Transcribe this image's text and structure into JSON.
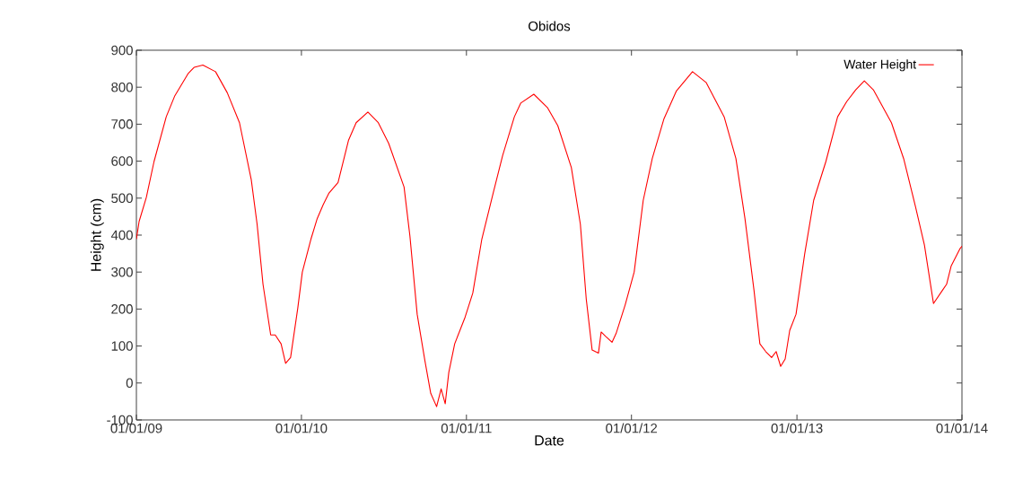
{
  "chart_data": {
    "type": "line",
    "title": "Obidos",
    "xlabel": "Date",
    "ylabel": "Height (cm)",
    "x": [
      "2009-01-01",
      "2009-01-07",
      "2009-01-23",
      "2009-02-09",
      "2009-03-08",
      "2009-03-27",
      "2009-04-26",
      "2009-05-09",
      "2009-05-28",
      "2009-06-25",
      "2009-07-21",
      "2009-08-17",
      "2009-09-12",
      "2009-09-25",
      "2009-10-08",
      "2009-10-25",
      "2009-11-04",
      "2009-11-17",
      "2009-11-27",
      "2009-12-08",
      "2009-12-24",
      "2010-01-03",
      "2010-01-22",
      "2010-02-05",
      "2010-02-18",
      "2010-03-03",
      "2010-03-23",
      "2010-04-15",
      "2010-05-02",
      "2010-05-28",
      "2010-06-20",
      "2010-07-13",
      "2010-08-16",
      "2010-08-29",
      "2010-09-14",
      "2010-10-01",
      "2010-10-14",
      "2010-10-27",
      "2010-11-06",
      "2010-11-15",
      "2010-11-23",
      "2010-12-06",
      "2010-12-29",
      "2011-01-15",
      "2011-02-04",
      "2011-03-02",
      "2011-03-22",
      "2011-04-17",
      "2011-05-01",
      "2011-05-30",
      "2011-06-29",
      "2011-07-22",
      "2011-08-21",
      "2011-09-10",
      "2011-09-23",
      "2011-10-06",
      "2011-10-20",
      "2011-10-26",
      "2011-11-05",
      "2011-11-19",
      "2011-11-28",
      "2011-12-18",
      "2012-01-07",
      "2012-01-27",
      "2012-02-16",
      "2012-03-13",
      "2012-04-09",
      "2012-04-28",
      "2012-05-15",
      "2012-06-14",
      "2012-07-24",
      "2012-08-19",
      "2012-09-08",
      "2012-09-28",
      "2012-10-11",
      "2012-10-24",
      "2012-11-06",
      "2012-11-16",
      "2012-11-26",
      "2012-12-06",
      "2012-12-16",
      "2012-12-30",
      "2013-01-18",
      "2013-02-07",
      "2013-03-06",
      "2013-04-01",
      "2013-04-21",
      "2013-05-11",
      "2013-05-30",
      "2013-06-19",
      "2013-07-29",
      "2013-08-25",
      "2013-09-20",
      "2013-10-10",
      "2013-10-30",
      "2013-11-19",
      "2013-11-28",
      "2013-12-08",
      "2013-12-28",
      "2014-01-01"
    ],
    "series": [
      {
        "name": "Water Height",
        "color": "#ff0000",
        "values": [
          389,
          437,
          502,
          599,
          720,
          777,
          838,
          854,
          860,
          842,
          785,
          704,
          550,
          429,
          267,
          130,
          130,
          106,
          53,
          69,
          203,
          300,
          389,
          445,
          482,
          514,
          542,
          656,
          704,
          733,
          704,
          648,
          530,
          397,
          186,
          61,
          -28,
          -64,
          -16,
          -56,
          29,
          106,
          178,
          243,
          389,
          518,
          615,
          720,
          757,
          781,
          745,
          696,
          583,
          429,
          227,
          89,
          81,
          138,
          126,
          110,
          134,
          211,
          300,
          494,
          607,
          715,
          789,
          817,
          842,
          813,
          720,
          607,
          445,
          251,
          106,
          85,
          69,
          85,
          45,
          65,
          142,
          186,
          348,
          494,
          599,
          720,
          761,
          793,
          817,
          793,
          704,
          607,
          478,
          373,
          215,
          251,
          267,
          316,
          364,
          370
        ]
      }
    ],
    "xlim": [
      "2009-01-01",
      "2014-01-01"
    ],
    "xticks": [
      {
        "value": "2009-01-01",
        "label": "01/01/09"
      },
      {
        "value": "2010-01-01",
        "label": "01/01/10"
      },
      {
        "value": "2011-01-01",
        "label": "01/01/11"
      },
      {
        "value": "2012-01-01",
        "label": "01/01/12"
      },
      {
        "value": "2013-01-01",
        "label": "01/01/13"
      },
      {
        "value": "2014-01-01",
        "label": "01/01/14"
      }
    ],
    "ylim": [
      -100,
      900
    ],
    "yticks": [
      -100,
      0,
      100,
      200,
      300,
      400,
      500,
      600,
      700,
      800,
      900
    ],
    "legend": "top right",
    "line_style": "solid",
    "grid": false
  }
}
